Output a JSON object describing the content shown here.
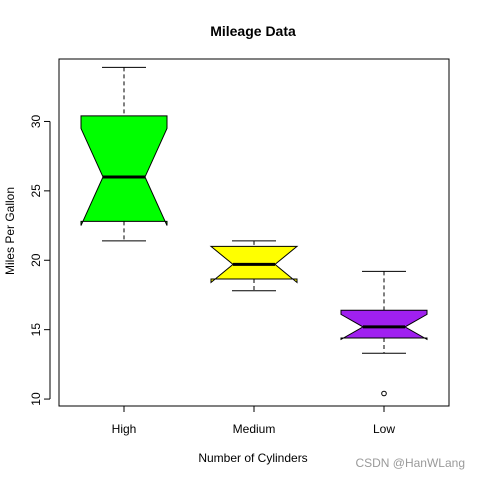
{
  "chart_data": {
    "type": "boxplot",
    "title": "Mileage Data",
    "xlabel": "Number of Cylinders",
    "ylabel": "Miles Per Gallon",
    "categories": [
      "High",
      "Medium",
      "Low"
    ],
    "notch": true,
    "ylim": [
      9.5,
      34.5
    ],
    "yticks": [
      10,
      15,
      20,
      25,
      30
    ],
    "boxes": [
      {
        "category": "High",
        "color": "#00ff00",
        "whisker_low": 21.4,
        "q1": 22.8,
        "median": 26.0,
        "q3": 30.4,
        "whisker_high": 33.9,
        "notch_low": 22.5,
        "notch_high": 29.5,
        "outliers": []
      },
      {
        "category": "Medium",
        "color": "#ffff00",
        "whisker_low": 17.8,
        "q1": 18.65,
        "median": 19.7,
        "q3": 21.0,
        "whisker_high": 21.4,
        "notch_low": 18.4,
        "notch_high": 21.0,
        "outliers": []
      },
      {
        "category": "Low",
        "color": "#a020f0",
        "whisker_low": 13.3,
        "q1": 14.4,
        "median": 15.2,
        "q3": 16.4,
        "whisker_high": 19.2,
        "notch_low": 14.3,
        "notch_high": 16.1,
        "outliers": [
          10.4
        ]
      }
    ],
    "grid": false,
    "legend": "none"
  },
  "watermark": "CSDN @HanWLang"
}
